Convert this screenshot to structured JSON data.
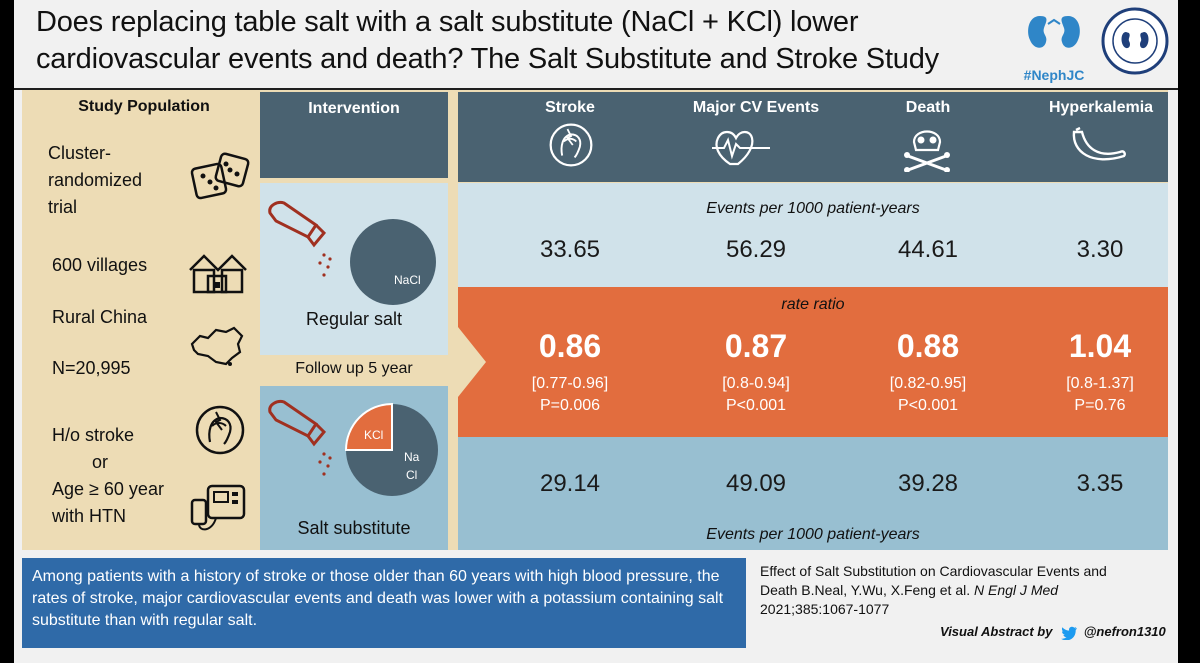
{
  "title": {
    "line1": "Does replacing table salt with a salt substitute (NaCl + KCl) lower",
    "line2": "cardiovascular events and death? The Salt Substitute and Stroke Study"
  },
  "logos": {
    "nephjc": "#NephJC",
    "nephrology_seal": "NEPHROLOGY SOCIAL MEDIA COLLECTIVE"
  },
  "population": {
    "heading": "Study Population",
    "items": [
      {
        "text": "Cluster-randomized trial",
        "icon": "dice-icon"
      },
      {
        "text": "600 villages",
        "icon": "village-icon"
      },
      {
        "text": "Rural China",
        "icon": "china-map-icon"
      },
      {
        "text": "N=20,995",
        "icon": ""
      },
      {
        "text": "H/o stroke",
        "icon": "stroke-head-icon"
      },
      {
        "text": "or",
        "icon": ""
      },
      {
        "text": "Age ≥ 60 year with HTN",
        "icon": "blood-pressure-monitor-icon"
      }
    ],
    "l1": "Cluster-",
    "l2": "randomized",
    "l3": "trial",
    "villages": "600 villages",
    "china": "Rural China",
    "n": "N=20,995",
    "stroke": "H/o stroke",
    "or": "or",
    "age1": "Age ≥ 60 year",
    "age2": "with HTN"
  },
  "intervention": {
    "heading": "Intervention",
    "regular_label": "Regular salt",
    "regular_pie": "NaCl",
    "follow_up": "Follow up 5 year",
    "substitute_label": "Salt substitute",
    "sub_pie_kcl": "KCl",
    "sub_pie_na": "Na",
    "sub_pie_cl": "Cl",
    "kcl_fraction": 0.25
  },
  "outcomes": {
    "headers": [
      "Stroke",
      "Major CV Events",
      "Death",
      "Hyperkalemia"
    ],
    "icons": [
      "stroke-head-icon",
      "heart-ecg-icon",
      "skull-crossbones-icon",
      "banana-icon"
    ],
    "events_label_top": "Events per 1000 patient-years",
    "regular_values": [
      "33.65",
      "56.29",
      "44.61",
      "3.30"
    ],
    "rate_ratio_label": "rate ratio",
    "rate_ratios": [
      "0.86",
      "0.87",
      "0.88",
      "1.04"
    ],
    "ci": [
      "[0.77-0.96]",
      "[0.8-0.94]",
      "[0.82-0.95]",
      "[0.8-1.37]"
    ],
    "p": [
      "P=0.006",
      "P<0.001",
      "P<0.001",
      "P=0.76"
    ],
    "substitute_values": [
      "29.14",
      "49.09",
      "39.28",
      "3.35"
    ],
    "events_label_bottom": "Events per 1000 patient-years"
  },
  "conclusion": "Among patients with a history of stroke or those older than 60 years with high blood pressure, the rates of stroke, major cardiovascular events and death was lower with a potassium containing salt substitute than with regular salt.",
  "reference": {
    "line1": "Effect of Salt Substitution on Cardiovascular Events and",
    "line2a": "Death B.Neal, Y.Wu, X.Feng et al. ",
    "journal": "N Engl J Med",
    "line3": "2021;385:1067-1077"
  },
  "credit": {
    "label": "Visual Abstract by",
    "handle": "@nefron1310"
  },
  "colors": {
    "dark": "#4a6271",
    "orange": "#e26d3e",
    "light_blue": "#d0e2ea",
    "mid_blue": "#98bfd1",
    "tan": "#eddcb5",
    "footer_blue": "#2f6aa8"
  }
}
